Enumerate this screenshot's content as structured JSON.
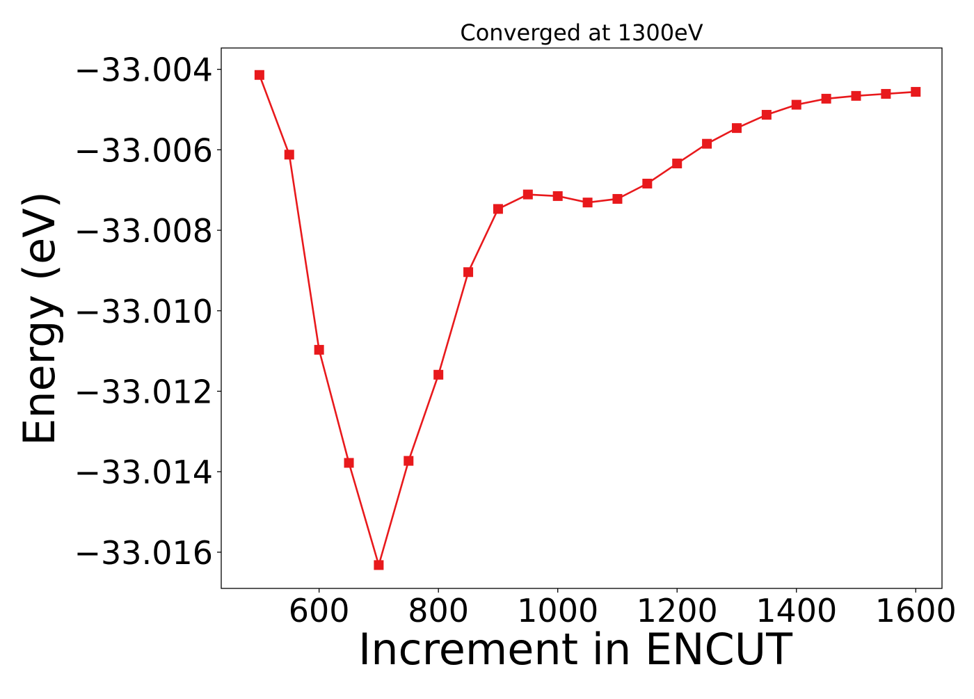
{
  "chart_data": {
    "type": "line",
    "title": "Converged at 1300eV",
    "xlabel": "Increment in ENCUT",
    "ylabel": "Energy (eV)",
    "x": [
      500,
      550,
      600,
      650,
      700,
      750,
      800,
      850,
      900,
      950,
      1000,
      1050,
      1100,
      1150,
      1200,
      1250,
      1300,
      1350,
      1400,
      1450,
      1500,
      1550,
      1600
    ],
    "series": [
      {
        "values": [
          -33.00414,
          -33.00612,
          -33.01097,
          -33.01378,
          -33.01632,
          -33.01373,
          -33.01159,
          -33.00904,
          -33.00747,
          -33.00711,
          -33.00715,
          -33.00731,
          -33.00722,
          -33.00684,
          -33.00634,
          -33.00585,
          -33.00546,
          -33.00513,
          -33.00488,
          -33.00473,
          -33.00466,
          -33.00461,
          -33.00456
        ]
      }
    ],
    "xlim": [
      436,
      1644
    ],
    "ylim": [
      -33.0169,
      -33.00347
    ],
    "xticks": [
      600,
      800,
      1000,
      1200,
      1400,
      1600
    ],
    "xtick_labels": [
      "600",
      "800",
      "1000",
      "1200",
      "1400",
      "1600"
    ],
    "yticks": [
      -33.004,
      -33.006,
      -33.008,
      -33.01,
      -33.012,
      -33.014,
      -33.016
    ],
    "ytick_labels": [
      "−33.004",
      "−33.006",
      "−33.008",
      "−33.010",
      "−33.012",
      "−33.014",
      "−33.016"
    ],
    "color": "#e8191c",
    "marker": "square",
    "grid": false,
    "legend": "none"
  }
}
